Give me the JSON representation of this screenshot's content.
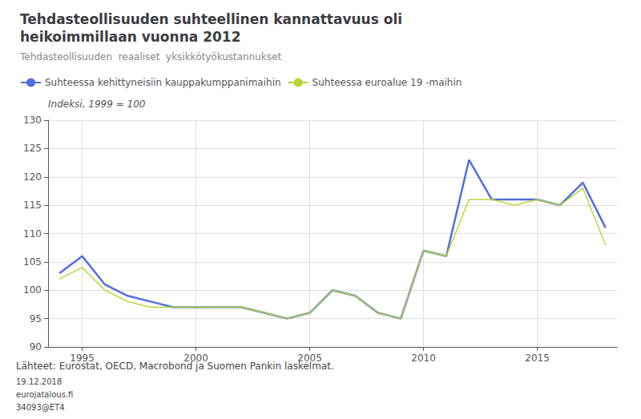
{
  "chart_data": {
    "type": "line",
    "title": "Tehdasteollisuuden suhteellinen kannattavuus oli\nheikoimmillaan vuonna 2012",
    "subtitle": "Tehdasteollisuuden  reaaliset  yksikkötyökustannukset",
    "y_label": "Indeksi, 1999 = 100",
    "annotations": [
      "Lähteet: Eurostat, OECD, Macrobond ja Suomen Pankin laskelmat.",
      "19.12.2018",
      "eurojatalous.fi",
      "34093@ET4"
    ],
    "x": [
      1994,
      1995,
      1996,
      1997,
      1998,
      1999,
      2000,
      2001,
      2002,
      2003,
      2004,
      2005,
      2006,
      2007,
      2008,
      2009,
      2010,
      2011,
      2012,
      2013,
      2014,
      2015,
      2016,
      2017,
      2018
    ],
    "series": [
      {
        "name": "Suhteessa kehittyneisiin kauppakumppanimaihin",
        "values": [
          103,
          106,
          101,
          99,
          98,
          97,
          97,
          97,
          97,
          96,
          95,
          96,
          100,
          99,
          96,
          95,
          107,
          106,
          123,
          116,
          116,
          116,
          115,
          119,
          111
        ]
      },
      {
        "name": "Suhteessa euroalue 19 -maihin",
        "values": [
          102,
          104,
          100,
          98,
          97,
          97,
          97,
          97,
          97,
          96,
          95,
          96,
          100,
          99,
          96,
          95,
          107,
          106,
          116,
          116,
          115,
          116,
          115,
          118,
          108
        ]
      }
    ],
    "xlim": [
      1993.5,
      2018.5
    ],
    "xticks": [
      1995,
      2000,
      2005,
      2010,
      2015
    ],
    "ylim": [
      90,
      130
    ],
    "yticks": [
      90,
      95,
      100,
      105,
      110,
      115,
      120,
      125,
      130
    ],
    "grid": true
  }
}
